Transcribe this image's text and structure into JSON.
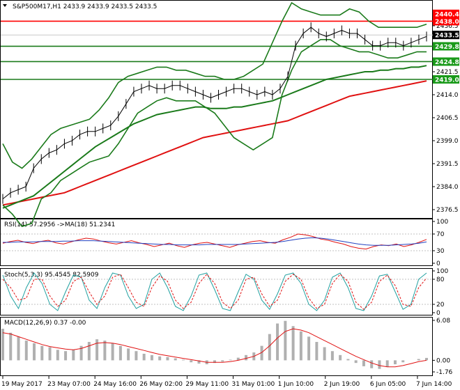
{
  "chart_data": {
    "type": "line",
    "colors": {
      "price": "#000000",
      "bollinger": "#1a7a1a",
      "ma_fast": "#1a7a1a",
      "ma_slow": "#e01010",
      "rsi": "#e01010",
      "rsi_ma": "#2040c0",
      "stoch_main": "#20a0a0",
      "stoch_signal": "#e01010",
      "macd_hist": "#b0b0b0",
      "macd_signal": "#e01010",
      "tag_red": "#ff0000",
      "tag_green": "#1a9a1a",
      "tag_dark": "#000000"
    },
    "main": {
      "header": "S&P500M17,H1",
      "ohlc": "2433.9 2433.9 2433.5 2433.5",
      "ylim": [
        2374.0,
        2444.0
      ],
      "ticks": [
        "2436.5",
        "2429.6",
        "2421.5",
        "2414.0",
        "2406.5",
        "2399.0",
        "2391.5",
        "2384.0",
        "2376.5"
      ],
      "levels": [
        {
          "value": 2440.4,
          "label": "2440.4",
          "color": "red"
        },
        {
          "value": 2438.0,
          "label": "2438.0",
          "color": "red"
        },
        {
          "value": 2433.5,
          "label": "2433.5",
          "color": "dark"
        },
        {
          "value": 2429.8,
          "label": "2429.8",
          "color": "green"
        },
        {
          "value": 2424.8,
          "label": "2424.8",
          "color": "green"
        },
        {
          "value": 2419.0,
          "label": "2419.0",
          "color": "green"
        }
      ],
      "hlines": [
        {
          "value": 2438.0,
          "color": "red"
        },
        {
          "value": 2429.8,
          "color": "green"
        },
        {
          "value": 2424.8,
          "color": "green"
        },
        {
          "value": 2419.0,
          "color": "green"
        }
      ],
      "price": [
        2380,
        2382,
        2383,
        2384,
        2390,
        2393,
        2395,
        2396,
        2398,
        2399,
        2401,
        2402,
        2402,
        2403,
        2404,
        2407,
        2411,
        2415,
        2416,
        2417,
        2416,
        2416,
        2417,
        2417,
        2416,
        2415,
        2414,
        2413,
        2414,
        2415,
        2416,
        2416,
        2415,
        2414,
        2415,
        2414,
        2416,
        2420,
        2430,
        2434,
        2436,
        2434,
        2433,
        2434,
        2435,
        2434,
        2434,
        2432,
        2430,
        2430,
        2431,
        2431,
        2430,
        2431,
        2432,
        2433
      ],
      "ma_fast": [
        2377,
        2378,
        2379,
        2380,
        2381,
        2383,
        2385,
        2387,
        2389,
        2391,
        2393,
        2395,
        2397,
        2398.5,
        2400,
        2401.5,
        2403,
        2404.5,
        2405.5,
        2406.5,
        2407.5,
        2408,
        2408.5,
        2409,
        2409.5,
        2410,
        2410,
        2409.5,
        2409.5,
        2409.5,
        2410,
        2410,
        2410.5,
        2411,
        2411.5,
        2412,
        2413,
        2414,
        2415,
        2416,
        2417,
        2418,
        2419,
        2419.5,
        2420,
        2420.5,
        2421,
        2421.5,
        2421.5,
        2422,
        2422,
        2422.5,
        2422.5,
        2423,
        2423,
        2423.5
      ],
      "ma_slow": [
        2378,
        2378.5,
        2379,
        2379.5,
        2380,
        2380.5,
        2381,
        2381.5,
        2382,
        2383,
        2384,
        2385,
        2386,
        2387,
        2388,
        2389,
        2390,
        2391,
        2392,
        2393,
        2394,
        2395,
        2396,
        2397,
        2398,
        2399,
        2400,
        2400.5,
        2401,
        2401.5,
        2402,
        2402.5,
        2403,
        2403.5,
        2404,
        2404.5,
        2405,
        2405.5,
        2406.5,
        2407.5,
        2408.5,
        2409.5,
        2410.5,
        2411.5,
        2412.5,
        2413.5,
        2414,
        2414.5,
        2415,
        2415.5,
        2416,
        2416.5,
        2417,
        2417.5,
        2418,
        2418.5
      ],
      "bb_upper": [
        2398,
        2392,
        2390,
        2393,
        2397,
        2401,
        2403,
        2404,
        2405,
        2406,
        2409,
        2413,
        2418,
        2420,
        2421,
        2422,
        2423,
        2423,
        2422,
        2422,
        2421,
        2420,
        2420,
        2419,
        2419,
        2420,
        2422,
        2424,
        2431,
        2438,
        2444,
        2442,
        2441,
        2440,
        2440,
        2440,
        2442,
        2441,
        2438,
        2436,
        2436,
        2436,
        2436,
        2436,
        2437
      ],
      "bb_lower": [
        2378,
        2375,
        2371,
        2372,
        2380,
        2382,
        2386,
        2388,
        2390,
        2392,
        2393,
        2394,
        2398,
        2403,
        2408,
        2410,
        2412,
        2413,
        2412,
        2412,
        2412,
        2410,
        2408,
        2404,
        2400,
        2398,
        2396,
        2398,
        2400,
        2414,
        2422,
        2428,
        2430,
        2432,
        2432,
        2430,
        2429,
        2428,
        2428,
        2427,
        2426,
        2426,
        2427,
        2428,
        2428
      ]
    },
    "rsi": {
      "label": "RSI(14) 57.2956 ->MA(18) 51.2341",
      "ylim": [
        0,
        100
      ],
      "ticks": [
        "100",
        "70",
        "30",
        "0"
      ],
      "tick_values": [
        100,
        70,
        30,
        0
      ],
      "values": [
        48,
        52,
        55,
        50,
        47,
        52,
        55,
        49,
        46,
        51,
        56,
        60,
        58,
        53,
        49,
        46,
        50,
        54,
        49,
        45,
        40,
        44,
        48,
        42,
        38,
        44,
        48,
        50,
        46,
        42,
        38,
        44,
        48,
        52,
        54,
        50,
        48,
        56,
        62,
        70,
        68,
        64,
        58,
        55,
        50,
        46,
        40,
        36,
        34,
        40,
        44,
        42,
        46,
        40,
        44,
        50,
        57
      ],
      "ma": [
        50,
        50,
        51,
        51,
        51,
        52,
        52,
        52,
        53,
        53,
        54,
        54,
        54,
        53,
        52,
        51,
        50,
        49,
        48,
        47,
        46,
        45,
        45,
        44,
        44,
        44,
        44,
        45,
        45,
        45,
        45,
        45,
        46,
        47,
        48,
        49,
        50,
        52,
        55,
        58,
        60,
        61,
        60,
        58,
        55,
        52,
        49,
        46,
        44,
        43,
        43,
        43,
        44,
        45,
        46,
        48,
        51
      ]
    },
    "stoch": {
      "label": "Stoch(5,3,3) 95.4545 82.5909",
      "ylim": [
        0,
        100
      ],
      "ticks": [
        "100",
        "80",
        "20",
        "0"
      ],
      "tick_values": [
        100,
        80,
        20,
        0
      ],
      "main": [
        90,
        40,
        10,
        60,
        95,
        70,
        20,
        5,
        50,
        90,
        85,
        30,
        10,
        60,
        95,
        90,
        40,
        10,
        20,
        80,
        95,
        60,
        15,
        5,
        40,
        90,
        95,
        55,
        10,
        5,
        50,
        92,
        80,
        30,
        8,
        45,
        90,
        95,
        70,
        20,
        5,
        30,
        85,
        95,
        60,
        10,
        5,
        40,
        88,
        92,
        50,
        8,
        20,
        80,
        95
      ],
      "signal": [
        80,
        60,
        30,
        35,
        80,
        80,
        40,
        15,
        30,
        75,
        85,
        50,
        20,
        40,
        85,
        92,
        60,
        25,
        15,
        60,
        88,
        75,
        30,
        10,
        25,
        70,
        92,
        70,
        25,
        10,
        30,
        80,
        85,
        45,
        15,
        30,
        75,
        92,
        80,
        35,
        10,
        20,
        70,
        92,
        75,
        25,
        8,
        25,
        75,
        90,
        65,
        20,
        15,
        60,
        83
      ]
    },
    "macd": {
      "label": "MACD(12,26,9) 0.37 -0.00",
      "ylim": [
        -1.76,
        6.08
      ],
      "ticks": [
        "6.08",
        "0.00",
        "-1.76"
      ],
      "tick_values": [
        6.08,
        0.0,
        -1.76
      ],
      "hist": [
        4.8,
        4.2,
        3.6,
        3.0,
        2.6,
        2.2,
        2.0,
        1.6,
        1.4,
        1.6,
        2.2,
        2.8,
        3.2,
        3.0,
        2.6,
        2.2,
        1.8,
        1.4,
        1.0,
        0.8,
        0.6,
        0.5,
        0.3,
        0.1,
        -0.3,
        -0.5,
        -0.6,
        -0.4,
        -0.2,
        0.1,
        0.4,
        0.8,
        1.2,
        2.2,
        4.0,
        5.6,
        6.0,
        5.2,
        4.4,
        3.6,
        2.8,
        2.0,
        1.4,
        0.8,
        0.2,
        -0.4,
        -0.9,
        -1.2,
        -1.3,
        -1.0,
        -0.6,
        -0.3,
        0.0,
        0.2,
        0.37
      ],
      "signal": [
        4.2,
        4.0,
        3.6,
        3.2,
        2.8,
        2.4,
        2.1,
        1.9,
        1.7,
        1.6,
        1.8,
        2.2,
        2.6,
        2.7,
        2.6,
        2.4,
        2.1,
        1.8,
        1.5,
        1.2,
        0.9,
        0.7,
        0.5,
        0.3,
        0.1,
        -0.1,
        -0.3,
        -0.3,
        -0.3,
        -0.2,
        0.0,
        0.3,
        0.6,
        1.2,
        2.2,
        3.4,
        4.4,
        4.8,
        4.6,
        4.2,
        3.6,
        3.0,
        2.4,
        1.8,
        1.2,
        0.6,
        0.1,
        -0.4,
        -0.8,
        -1.0,
        -1.0,
        -0.8,
        -0.5,
        -0.2,
        0.0
      ]
    },
    "x_ticks": [
      "19 May 2017",
      "23 May 07:00",
      "24 May 16:00",
      "26 May 02:00",
      "29 May 11:00",
      "31 May 01:00",
      "1 Jun 10:00",
      "2 Jun 19:00",
      "6 Jun 05:00",
      "7 Jun 14:00"
    ]
  }
}
